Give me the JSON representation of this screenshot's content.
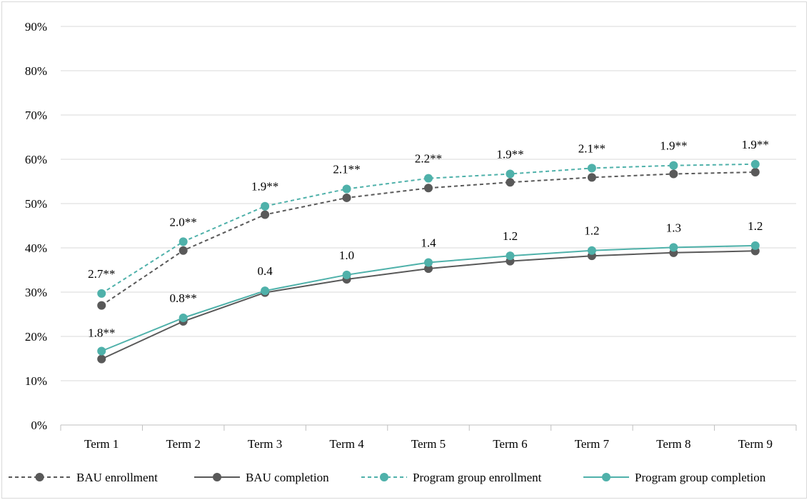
{
  "chart_data": {
    "type": "line",
    "title": "",
    "xlabel": "",
    "ylabel": "",
    "categories": [
      "Term 1",
      "Term 2",
      "Term 3",
      "Term 4",
      "Term 5",
      "Term 6",
      "Term 7",
      "Term 8",
      "Term 9"
    ],
    "ylim": [
      0,
      90
    ],
    "yticks": [
      "0%",
      "10%",
      "20%",
      "30%",
      "40%",
      "50%",
      "60%",
      "70%",
      "80%",
      "90%"
    ],
    "y_tick_values": [
      0,
      10,
      20,
      30,
      40,
      50,
      60,
      70,
      80,
      90
    ],
    "grid": true,
    "legend_position": "bottom",
    "series": [
      {
        "name": "BAU enrollment",
        "style": "dashed",
        "color": "#595959",
        "values": [
          27.0,
          39.4,
          47.5,
          51.3,
          53.5,
          54.8,
          55.9,
          56.7,
          57.1
        ]
      },
      {
        "name": "BAU completion",
        "style": "solid",
        "color": "#595959",
        "values": [
          14.9,
          23.4,
          29.9,
          32.9,
          35.3,
          37.0,
          38.2,
          38.9,
          39.3
        ]
      },
      {
        "name": "Program group enrollment",
        "style": "dashed",
        "color": "#4fb1aa",
        "values": [
          29.7,
          41.4,
          49.4,
          53.3,
          55.7,
          56.7,
          58.0,
          58.6,
          58.9
        ]
      },
      {
        "name": "Program group completion",
        "style": "solid",
        "color": "#4fb1aa",
        "values": [
          16.7,
          24.2,
          30.3,
          33.9,
          36.7,
          38.2,
          39.4,
          40.1,
          40.5
        ]
      }
    ],
    "annotations": {
      "enrollment_differences": [
        "2.7**",
        "2.0**",
        "1.9**",
        "2.1**",
        "2.2**",
        "1.9**",
        "2.1**",
        "1.9**",
        "1.9**"
      ],
      "completion_differences": [
        "1.8**",
        "0.8**",
        "0.4",
        "1.0",
        "1.4",
        "1.2",
        "1.2",
        "1.3",
        "1.2"
      ]
    }
  }
}
